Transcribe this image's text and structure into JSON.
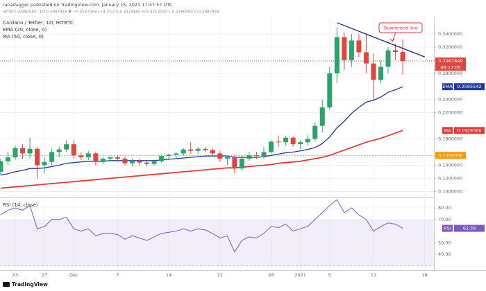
{
  "header": {
    "line1": "ranadagger published on TradingView.com, January 15, 2021 17:47:57 UTC",
    "line2": "HITBTC:ADAUSDT, 1D  0.2987849 ▼ −0.0137209 (−4.4%) O:0.3124800 H:0.3313027 L:0.2780000 C:0.2987849"
  },
  "footer": {
    "logo": "TradingView"
  },
  "chart_data": [
    {
      "type": "candlestick",
      "title": "Cardano / Tether, 1D, HITBTC",
      "categories": [
        null,
        null,
        "23",
        null,
        null,
        null,
        "27",
        null,
        null,
        null,
        "Dec",
        null,
        null,
        null,
        null,
        null,
        "7",
        null,
        null,
        null,
        null,
        null,
        null,
        "14",
        null,
        null,
        null,
        null,
        null,
        null,
        "21",
        null,
        null,
        null,
        null,
        null,
        null,
        "28",
        null,
        null,
        null,
        "2021",
        null,
        null,
        null,
        "5",
        null,
        null,
        null,
        null,
        null,
        "11",
        null,
        null,
        null,
        null,
        null,
        null,
        "18"
      ],
      "open": [
        0.13,
        0.146,
        0.152,
        0.166,
        0.158,
        0.165,
        0.14,
        0.145,
        0.16,
        0.164,
        0.172,
        0.155,
        0.152,
        0.158,
        0.145,
        0.15,
        0.152,
        0.15,
        0.143,
        0.147,
        0.144,
        0.142,
        0.146,
        0.154,
        0.156,
        0.158,
        0.164,
        0.162,
        0.165,
        0.163,
        0.158,
        0.15,
        0.152,
        0.135,
        0.15,
        0.155,
        0.154,
        0.16,
        0.176,
        0.175,
        0.182,
        0.172,
        0.175,
        0.18,
        0.2,
        0.228,
        0.28,
        0.335,
        0.3,
        0.33,
        0.312,
        0.295,
        0.27,
        0.29,
        0.315,
        0.31248,
        null,
        null,
        null
      ],
      "high": [
        0.15,
        0.16,
        0.17,
        0.172,
        0.182,
        0.168,
        0.152,
        0.165,
        0.168,
        0.178,
        0.178,
        0.16,
        0.162,
        0.16,
        0.152,
        0.154,
        0.155,
        0.153,
        0.15,
        0.15,
        0.146,
        0.148,
        0.156,
        0.158,
        0.16,
        0.166,
        0.175,
        0.168,
        0.168,
        0.166,
        0.162,
        0.155,
        0.155,
        0.155,
        0.16,
        0.16,
        0.168,
        0.178,
        0.185,
        0.185,
        0.184,
        0.178,
        0.186,
        0.205,
        0.24,
        0.29,
        0.35,
        0.342,
        0.34,
        0.34,
        0.34,
        0.31,
        0.3,
        0.32,
        0.325,
        0.3313027,
        null,
        null,
        null
      ],
      "low": [
        0.125,
        0.14,
        0.148,
        0.15,
        0.15,
        0.12,
        0.128,
        0.14,
        0.152,
        0.16,
        0.15,
        0.148,
        0.148,
        0.14,
        0.142,
        0.146,
        0.145,
        0.14,
        0.138,
        0.14,
        0.138,
        0.14,
        0.144,
        0.148,
        0.15,
        0.154,
        0.158,
        0.158,
        0.16,
        0.155,
        0.145,
        0.14,
        0.128,
        0.132,
        0.147,
        0.15,
        0.15,
        0.158,
        0.168,
        0.17,
        0.168,
        0.165,
        0.17,
        0.176,
        0.19,
        0.225,
        0.265,
        0.285,
        0.29,
        0.305,
        0.28,
        0.24,
        0.265,
        0.28,
        0.3,
        0.278,
        null,
        null,
        null
      ],
      "close": [
        0.146,
        0.152,
        0.166,
        0.158,
        0.165,
        0.14,
        0.145,
        0.16,
        0.164,
        0.172,
        0.155,
        0.152,
        0.158,
        0.145,
        0.15,
        0.152,
        0.15,
        0.143,
        0.147,
        0.144,
        0.142,
        0.146,
        0.154,
        0.156,
        0.158,
        0.164,
        0.162,
        0.165,
        0.163,
        0.158,
        0.15,
        0.152,
        0.135,
        0.15,
        0.155,
        0.154,
        0.16,
        0.176,
        0.175,
        0.182,
        0.172,
        0.175,
        0.18,
        0.2,
        0.228,
        0.28,
        0.335,
        0.3,
        0.33,
        0.312,
        0.295,
        0.27,
        0.29,
        0.315,
        0.31248,
        0.2987849,
        null,
        null,
        null
      ],
      "up_color": "#2aa36c",
      "down_color": "#e2453f",
      "countdown": "06:17:05",
      "series": [
        {
          "name": "EMA (20, close, 0)",
          "tag": "EMA",
          "color": "#1e3a9e",
          "values": [
            0.125,
            0.127,
            0.13,
            0.132,
            0.135,
            0.135,
            0.136,
            0.138,
            0.14,
            0.143,
            0.144,
            0.145,
            0.146,
            0.146,
            0.146,
            0.147,
            0.147,
            0.147,
            0.147,
            0.147,
            0.147,
            0.147,
            0.148,
            0.149,
            0.15,
            0.151,
            0.152,
            0.153,
            0.154,
            0.154,
            0.154,
            0.154,
            0.152,
            0.152,
            0.152,
            0.152,
            0.153,
            0.155,
            0.157,
            0.159,
            0.16,
            0.162,
            0.164,
            0.167,
            0.173,
            0.183,
            0.197,
            0.207,
            0.219,
            0.228,
            0.236,
            0.239,
            0.244,
            0.251,
            0.255,
            0.2595542,
            null,
            null,
            null
          ]
        },
        {
          "name": "MA (50, close, 0)",
          "tag": "MA",
          "color": "#e53935",
          "values": [
            0.105,
            0.106,
            0.107,
            0.108,
            0.109,
            0.11,
            0.111,
            0.112,
            0.113,
            0.114,
            0.115,
            0.116,
            0.117,
            0.118,
            0.119,
            0.12,
            0.121,
            0.122,
            0.123,
            0.124,
            0.125,
            0.126,
            0.127,
            0.128,
            0.129,
            0.13,
            0.131,
            0.132,
            0.133,
            0.134,
            0.135,
            0.136,
            0.136,
            0.137,
            0.138,
            0.139,
            0.14,
            0.141,
            0.143,
            0.144,
            0.145,
            0.146,
            0.148,
            0.15,
            0.152,
            0.155,
            0.159,
            0.163,
            0.167,
            0.171,
            0.175,
            0.178,
            0.181,
            0.185,
            0.189,
            0.1929366,
            null,
            null,
            null
          ]
        }
      ],
      "trendline": {
        "color": "#1a237e",
        "label": "Downtrend line",
        "label_color": "#e53935",
        "values": [
          null,
          null,
          null,
          null,
          null,
          null,
          null,
          null,
          null,
          null,
          null,
          null,
          null,
          null,
          null,
          null,
          null,
          null,
          null,
          null,
          null,
          null,
          null,
          null,
          null,
          null,
          null,
          null,
          null,
          null,
          null,
          null,
          null,
          null,
          null,
          null,
          null,
          null,
          null,
          null,
          null,
          null,
          null,
          null,
          null,
          null,
          0.357,
          null,
          null,
          null,
          null,
          null,
          null,
          null,
          null,
          null,
          null,
          null,
          0.305
        ]
      },
      "hline": {
        "value": 0.155,
        "label": "0.1550000",
        "color": "#ff9800"
      },
      "ylim": [
        0.093,
        0.36
      ],
      "yticks": [
        {
          "value": 0.1,
          "label": "0.1000000"
        },
        {
          "value": 0.12,
          "label": "0.1200000"
        },
        {
          "value": 0.14,
          "label": "0.1400000"
        },
        {
          "value": 0.18,
          "label": "0.1800000"
        },
        {
          "value": 0.22,
          "label": "0.2200000"
        },
        {
          "value": 0.24,
          "label": "0.2400000"
        },
        {
          "value": 0.28,
          "label": "0.2800000"
        },
        {
          "value": 0.32,
          "label": "0.3200000"
        },
        {
          "value": 0.34,
          "label": "0.3400000"
        }
      ],
      "grid": true
    },
    {
      "type": "line",
      "title": "RSI (14, close)",
      "series": [
        {
          "name": "RSI",
          "color": "#7e57c2",
          "values": [
            74,
            78,
            80,
            78,
            82,
            62,
            64,
            70,
            70,
            72,
            62,
            60,
            62,
            56,
            58,
            58,
            57,
            53,
            56,
            54,
            52,
            55,
            58,
            59,
            60,
            62,
            60,
            62,
            61,
            58,
            54,
            56,
            42,
            52,
            55,
            54,
            58,
            64,
            63,
            66,
            60,
            62,
            64,
            70,
            76,
            82,
            87,
            76,
            80,
            74,
            70,
            60,
            64,
            67,
            66,
            62.39,
            null,
            null,
            null
          ]
        }
      ],
      "band": [
        30,
        70
      ],
      "band_color": "#7e57c2",
      "ylim": [
        27.5,
        87.2
      ],
      "yticks": [
        {
          "value": 40,
          "label": "40.00"
        },
        {
          "value": 50,
          "label": "50.00"
        },
        {
          "value": 70,
          "label": "70.00"
        },
        {
          "value": 80,
          "label": "80.00"
        }
      ],
      "grid": true
    }
  ]
}
